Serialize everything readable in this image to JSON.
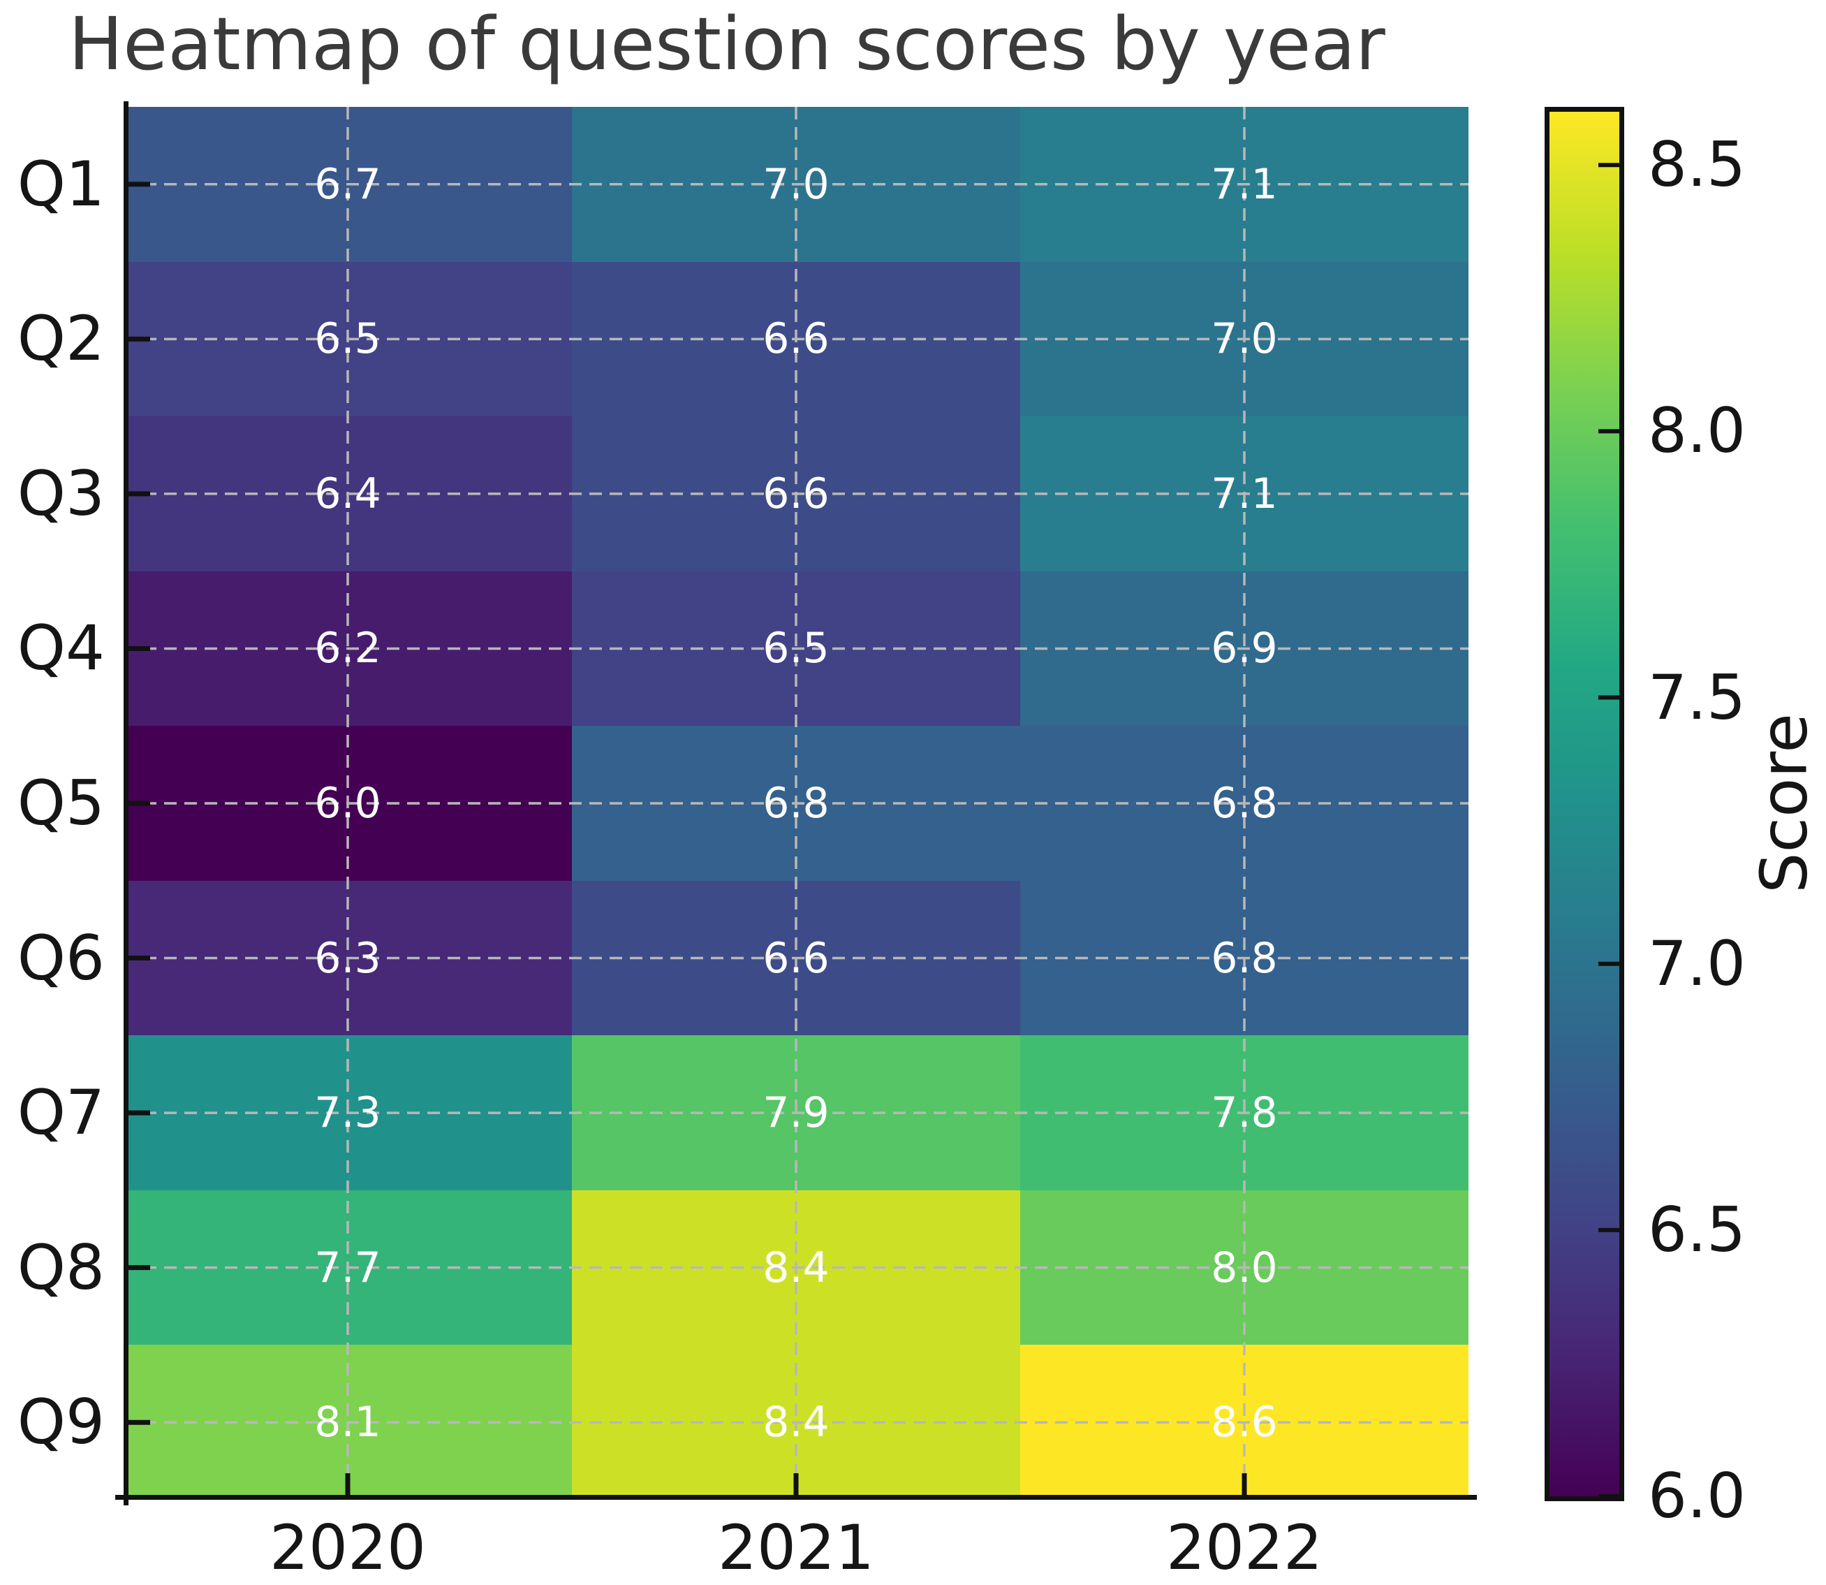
{
  "title": "Heatmap of question scores by year",
  "chart_data": {
    "type": "heatmap",
    "title": "Heatmap of question scores by year",
    "rows": [
      "Q1",
      "Q2",
      "Q3",
      "Q4",
      "Q5",
      "Q6",
      "Q7",
      "Q8",
      "Q9"
    ],
    "columns": [
      "2020",
      "2021",
      "2022"
    ],
    "values": [
      [
        6.7,
        7.0,
        7.1
      ],
      [
        6.5,
        6.6,
        7.0
      ],
      [
        6.4,
        6.6,
        7.1
      ],
      [
        6.2,
        6.5,
        6.9
      ],
      [
        6.0,
        6.8,
        6.8
      ],
      [
        6.3,
        6.6,
        6.8
      ],
      [
        7.3,
        7.9,
        7.8
      ],
      [
        7.7,
        8.4,
        8.0
      ],
      [
        8.1,
        8.4,
        8.6
      ]
    ],
    "annotation_decimals": 1,
    "annotation_color": "#ffffff",
    "grid": true,
    "grid_color": "#b8b8b8",
    "colormap": "viridis",
    "colormap_stops": [
      "#440154",
      "#482475",
      "#414487",
      "#355f8d",
      "#2a788e",
      "#21918c",
      "#22a884",
      "#44bf70",
      "#7ad151",
      "#bddf26",
      "#fde725"
    ],
    "colorbar": {
      "label": "Score",
      "min": 6.0,
      "max": 8.6,
      "tick_values": [
        8.5,
        8.0,
        7.5,
        7.0,
        6.5,
        6.0
      ],
      "tick_labels": [
        "8.5",
        "8.0",
        "7.5",
        "7.0",
        "6.5",
        "6.0"
      ],
      "position": "right"
    }
  }
}
